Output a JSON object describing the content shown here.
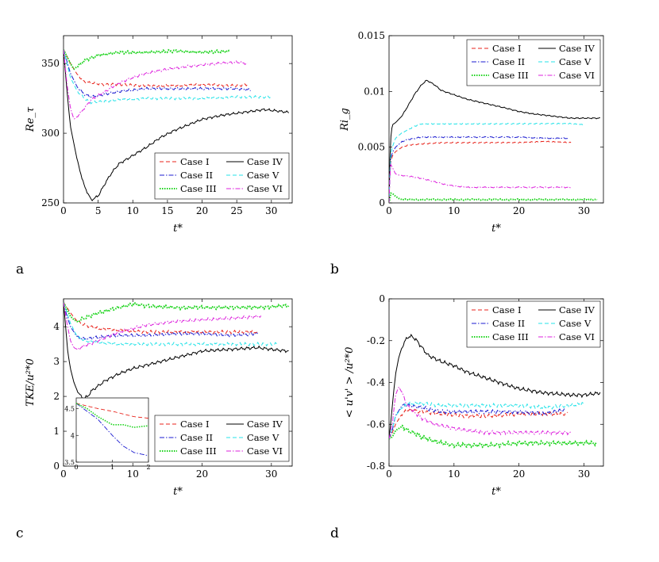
{
  "colors": {
    "case1": "#e8231b",
    "case2": "#1b1bd0",
    "case3": "#1fd41f",
    "case4": "#000000",
    "case5": "#25e3e8",
    "case6": "#dd22dd"
  },
  "chart_data": [
    {
      "panel": "a",
      "type": "line",
      "xlabel": "t*",
      "ylabel": "Re_τ",
      "xlim": [
        0,
        33
      ],
      "ylim": [
        250,
        370
      ],
      "xticks": [
        0,
        5,
        10,
        15,
        20,
        25,
        30
      ],
      "yticks": [
        250,
        300,
        350
      ],
      "legend": [
        "Case I",
        "Case IV",
        "Case II",
        "Case V",
        "Case III",
        "Case VI"
      ],
      "legend_position": "bottom-right",
      "series": [
        {
          "name": "Case I",
          "color": "case1",
          "dash": "dashed",
          "x": [
            0,
            1,
            2,
            3,
            4,
            6,
            8,
            12,
            16,
            20,
            25,
            26.5
          ],
          "y": [
            360,
            350,
            342,
            337,
            336,
            335,
            335,
            334,
            334,
            335,
            334,
            335
          ]
        },
        {
          "name": "Case II",
          "color": "case2",
          "dash": "dashdot",
          "x": [
            0,
            1,
            2,
            3,
            4,
            5,
            6,
            8,
            12,
            16,
            20,
            25,
            27
          ],
          "y": [
            360,
            343,
            333,
            328,
            326,
            327,
            328,
            330,
            332,
            332,
            332,
            332,
            331
          ]
        },
        {
          "name": "Case III",
          "color": "case3",
          "dash": "dotted",
          "x": [
            0,
            1,
            1.5,
            2,
            3,
            5,
            8,
            12,
            16,
            20,
            24
          ],
          "y": [
            360,
            350,
            346,
            348,
            352,
            356,
            358,
            358,
            359,
            358,
            359
          ]
        },
        {
          "name": "Case IV",
          "color": "case4",
          "dash": "solid",
          "x": [
            0,
            0.5,
            1,
            2,
            3,
            4,
            5,
            6,
            7,
            8,
            10,
            12,
            14,
            16,
            18,
            20,
            23,
            26,
            29,
            32.5
          ],
          "y": [
            360,
            330,
            305,
            280,
            262,
            252,
            255,
            264,
            272,
            278,
            284,
            290,
            297,
            302,
            306,
            310,
            313,
            315,
            317,
            315
          ]
        },
        {
          "name": "Case V",
          "color": "case5",
          "dash": "dashed",
          "x": [
            0,
            1,
            2,
            3,
            4,
            6,
            8,
            12,
            16,
            20,
            25,
            30
          ],
          "y": [
            360,
            340,
            330,
            325,
            322,
            323,
            324,
            325,
            325,
            325,
            326,
            326
          ]
        },
        {
          "name": "Case VI",
          "color": "case6",
          "dash": "dashdot",
          "x": [
            0,
            0.5,
            1,
            1.5,
            2,
            3,
            4,
            6,
            8,
            10,
            12,
            15,
            18,
            20,
            22,
            25,
            26.5
          ],
          "y": [
            360,
            335,
            318,
            310,
            312,
            318,
            324,
            330,
            336,
            340,
            343,
            346,
            348,
            349,
            350,
            351,
            350
          ]
        }
      ]
    },
    {
      "panel": "b",
      "type": "line",
      "xlabel": "t*",
      "ylabel": "Ri_g",
      "xlim": [
        0,
        33
      ],
      "ylim": [
        0,
        0.015
      ],
      "xticks": [
        0,
        10,
        20,
        30
      ],
      "yticks": [
        0,
        0.005,
        0.01,
        0.015
      ],
      "legend": [
        "Case I",
        "Case IV",
        "Case II",
        "Case V",
        "Case III",
        "Case VI"
      ],
      "legend_position": "top-right",
      "series": [
        {
          "name": "Case I",
          "color": "case1",
          "dash": "dashed",
          "x": [
            0,
            0.2,
            0.5,
            1,
            2,
            3,
            5,
            8,
            12,
            16,
            20,
            24,
            28
          ],
          "y": [
            0,
            0.0035,
            0.0042,
            0.0046,
            0.005,
            0.0052,
            0.0053,
            0.0054,
            0.0054,
            0.0054,
            0.0054,
            0.0055,
            0.0054
          ]
        },
        {
          "name": "Case II",
          "color": "case2",
          "dash": "dashdot",
          "x": [
            0,
            0.2,
            0.5,
            1,
            2,
            3,
            5,
            8,
            12,
            16,
            20,
            24,
            27.5
          ],
          "y": [
            0,
            0.0038,
            0.0045,
            0.005,
            0.0055,
            0.0057,
            0.0059,
            0.0059,
            0.0059,
            0.0059,
            0.0059,
            0.0058,
            0.0058
          ]
        },
        {
          "name": "Case III",
          "color": "case3",
          "dash": "dotted",
          "x": [
            0,
            0.3,
            0.6,
            1,
            1.5,
            2,
            3,
            5,
            8,
            12,
            20,
            28,
            32
          ],
          "y": [
            0,
            0.0009,
            0.0008,
            0.0006,
            0.0004,
            0.0003,
            0.0003,
            0.0003,
            0.0003,
            0.0003,
            0.0003,
            0.0003,
            0.0003
          ]
        },
        {
          "name": "Case IV",
          "color": "case4",
          "dash": "solid",
          "x": [
            0,
            0.2,
            0.5,
            1,
            2,
            3,
            4,
            5,
            5.8,
            7,
            8,
            10,
            12,
            15,
            18,
            20,
            22,
            25,
            28,
            30,
            32.5
          ],
          "y": [
            0,
            0.0055,
            0.007,
            0.0072,
            0.0078,
            0.0088,
            0.0098,
            0.0106,
            0.011,
            0.0106,
            0.0101,
            0.0097,
            0.0093,
            0.0089,
            0.0085,
            0.0082,
            0.008,
            0.0078,
            0.0076,
            0.0076,
            0.0076
          ]
        },
        {
          "name": "Case V",
          "color": "case5",
          "dash": "dashed",
          "x": [
            0,
            0.2,
            0.5,
            1,
            2,
            3,
            4,
            5,
            8,
            12,
            20,
            28,
            30
          ],
          "y": [
            0,
            0.004,
            0.005,
            0.0058,
            0.0063,
            0.0066,
            0.0069,
            0.0071,
            0.0071,
            0.0071,
            0.0071,
            0.0071,
            0.007
          ]
        },
        {
          "name": "Case VI",
          "color": "case6",
          "dash": "dashdot",
          "x": [
            0,
            0.2,
            0.5,
            1,
            1.5,
            3,
            5,
            7,
            9,
            12,
            15,
            20,
            25,
            28
          ],
          "y": [
            0,
            0.0035,
            0.0032,
            0.0026,
            0.0025,
            0.0024,
            0.0022,
            0.0019,
            0.0016,
            0.0014,
            0.0014,
            0.0014,
            0.0014,
            0.0014
          ]
        }
      ]
    },
    {
      "panel": "c",
      "type": "line",
      "xlabel": "t*",
      "ylabel": "TKE/u²*0",
      "xlim": [
        0,
        33
      ],
      "ylim": [
        0,
        4.8
      ],
      "xticks": [
        0,
        10,
        20,
        30
      ],
      "yticks": [
        0,
        1,
        2,
        3,
        4
      ],
      "legend": [
        "Case I",
        "Case IV",
        "Case II",
        "Case V",
        "Case III",
        "Case VI"
      ],
      "legend_position": "bottom-right",
      "series": [
        {
          "name": "Case I",
          "color": "case1",
          "dash": "dashed",
          "x": [
            0,
            0.5,
            1,
            2,
            3,
            5,
            8,
            12,
            16,
            20,
            24,
            28
          ],
          "y": [
            4.7,
            4.55,
            4.4,
            4.15,
            4.05,
            3.95,
            3.9,
            3.85,
            3.85,
            3.85,
            3.85,
            3.85
          ]
        },
        {
          "name": "Case II",
          "color": "case2",
          "dash": "dashdot",
          "x": [
            0,
            0.5,
            1,
            2,
            3,
            5,
            8,
            12,
            16,
            20,
            24,
            28
          ],
          "y": [
            4.7,
            4.3,
            4.0,
            3.7,
            3.65,
            3.7,
            3.75,
            3.75,
            3.8,
            3.8,
            3.75,
            3.8
          ]
        },
        {
          "name": "Case III",
          "color": "case3",
          "dash": "dotted",
          "x": [
            0,
            0.5,
            1,
            1.5,
            2,
            3,
            5,
            8,
            10,
            12,
            16,
            20,
            24,
            28,
            32.5
          ],
          "y": [
            4.7,
            4.5,
            4.3,
            4.2,
            4.15,
            4.25,
            4.4,
            4.55,
            4.65,
            4.6,
            4.55,
            4.55,
            4.55,
            4.55,
            4.6
          ]
        },
        {
          "name": "Case IV",
          "color": "case4",
          "dash": "solid",
          "x": [
            0,
            0.3,
            0.6,
            1,
            1.5,
            2,
            2.5,
            3,
            3.5,
            4,
            5,
            6,
            8,
            10,
            12,
            15,
            18,
            20,
            24,
            28,
            30,
            32.5
          ],
          "y": [
            4.7,
            4.0,
            3.3,
            2.8,
            2.4,
            2.15,
            2.0,
            1.95,
            2.0,
            2.15,
            2.3,
            2.45,
            2.65,
            2.8,
            2.9,
            3.05,
            3.2,
            3.3,
            3.35,
            3.4,
            3.35,
            3.3
          ]
        },
        {
          "name": "Case V",
          "color": "case5",
          "dash": "dashed",
          "x": [
            0,
            0.5,
            1,
            2,
            3,
            5,
            8,
            12,
            16,
            20,
            25,
            31
          ],
          "y": [
            4.7,
            4.4,
            4.1,
            3.7,
            3.6,
            3.55,
            3.5,
            3.5,
            3.5,
            3.5,
            3.5,
            3.5
          ]
        },
        {
          "name": "Case VI",
          "color": "case6",
          "dash": "dashdot",
          "x": [
            0,
            0.5,
            1,
            1.5,
            2,
            3,
            5,
            8,
            12,
            16,
            20,
            25,
            28.5
          ],
          "y": [
            4.7,
            4.1,
            3.6,
            3.4,
            3.35,
            3.45,
            3.6,
            3.85,
            4.05,
            4.15,
            4.2,
            4.25,
            4.3
          ]
        }
      ],
      "inset": {
        "xlim": [
          0,
          2
        ],
        "ylim": [
          3.5,
          4.7
        ],
        "xticks": [
          0,
          1,
          2
        ],
        "yticks": [
          3.5,
          4,
          4.5
        ],
        "series": [
          {
            "name": "Case I",
            "x": [
              0,
              0.3,
              0.6,
              1,
              1.3,
              1.6,
              2
            ],
            "y": [
              4.6,
              4.55,
              4.5,
              4.45,
              4.4,
              4.35,
              4.32
            ]
          },
          {
            "name": "Case II",
            "x": [
              0,
              0.3,
              0.6,
              1,
              1.3,
              1.6,
              2
            ],
            "y": [
              4.6,
              4.45,
              4.3,
              4.0,
              3.8,
              3.68,
              3.62
            ]
          },
          {
            "name": "Case III",
            "x": [
              0,
              0.3,
              0.6,
              1,
              1.3,
              1.6,
              2
            ],
            "y": [
              4.6,
              4.5,
              4.35,
              4.2,
              4.2,
              4.15,
              4.18
            ]
          }
        ]
      }
    },
    {
      "panel": "d",
      "type": "line",
      "xlabel": "t*",
      "ylabel": "< u'v' > /u²*0",
      "xlim": [
        0,
        33
      ],
      "ylim": [
        -0.8,
        0
      ],
      "xticks": [
        0,
        10,
        20,
        30
      ],
      "yticks": [
        -0.8,
        -0.6,
        -0.4,
        -0.2,
        0
      ],
      "legend": [
        "Case I",
        "Case IV",
        "Case II",
        "Case V",
        "Case III",
        "Case VI"
      ],
      "legend_position": "top-right",
      "series": [
        {
          "name": "Case I",
          "color": "case1",
          "dash": "dashed",
          "x": [
            0,
            0.5,
            1,
            2,
            3,
            5,
            8,
            12,
            16,
            20,
            24,
            27.5
          ],
          "y": [
            -0.67,
            -0.64,
            -0.6,
            -0.55,
            -0.53,
            -0.54,
            -0.55,
            -0.56,
            -0.56,
            -0.55,
            -0.55,
            -0.55
          ]
        },
        {
          "name": "Case II",
          "color": "case2",
          "dash": "dashdot",
          "x": [
            0,
            0.5,
            1,
            2,
            3,
            5,
            8,
            12,
            16,
            20,
            24,
            27
          ],
          "y": [
            -0.67,
            -0.63,
            -0.56,
            -0.51,
            -0.51,
            -0.52,
            -0.54,
            -0.54,
            -0.54,
            -0.54,
            -0.55,
            -0.53
          ]
        },
        {
          "name": "Case III",
          "color": "case3",
          "dash": "dotted",
          "x": [
            0,
            0.5,
            1,
            2,
            3,
            5,
            8,
            10,
            12,
            16,
            20,
            24,
            28,
            32
          ],
          "y": [
            -0.67,
            -0.66,
            -0.63,
            -0.61,
            -0.63,
            -0.66,
            -0.69,
            -0.7,
            -0.7,
            -0.7,
            -0.69,
            -0.69,
            -0.69,
            -0.69
          ]
        },
        {
          "name": "Case IV",
          "color": "case4",
          "dash": "solid",
          "x": [
            0,
            0.3,
            0.7,
            1,
            1.5,
            2,
            2.5,
            3,
            3.5,
            4,
            5,
            6,
            8,
            10,
            12,
            15,
            18,
            20,
            24,
            28,
            30,
            32.5
          ],
          "y": [
            -0.67,
            -0.58,
            -0.45,
            -0.36,
            -0.28,
            -0.23,
            -0.2,
            -0.18,
            -0.18,
            -0.19,
            -0.23,
            -0.27,
            -0.3,
            -0.32,
            -0.35,
            -0.38,
            -0.41,
            -0.43,
            -0.45,
            -0.46,
            -0.46,
            -0.45
          ]
        },
        {
          "name": "Case V",
          "color": "case5",
          "dash": "dashed",
          "x": [
            0,
            0.5,
            1,
            2,
            3,
            5,
            8,
            12,
            16,
            20,
            24,
            28,
            30
          ],
          "y": [
            -0.67,
            -0.62,
            -0.56,
            -0.52,
            -0.5,
            -0.5,
            -0.51,
            -0.51,
            -0.51,
            -0.51,
            -0.52,
            -0.51,
            -0.5
          ]
        },
        {
          "name": "Case VI",
          "color": "case6",
          "dash": "dashdot",
          "x": [
            0,
            0.5,
            1,
            1.5,
            2,
            3,
            5,
            7,
            10,
            12,
            15,
            20,
            24,
            28
          ],
          "y": [
            -0.67,
            -0.6,
            -0.46,
            -0.42,
            -0.45,
            -0.52,
            -0.57,
            -0.6,
            -0.62,
            -0.63,
            -0.64,
            -0.64,
            -0.64,
            -0.64
          ]
        }
      ]
    }
  ],
  "panel_labels": [
    "a",
    "b",
    "c",
    "d"
  ]
}
